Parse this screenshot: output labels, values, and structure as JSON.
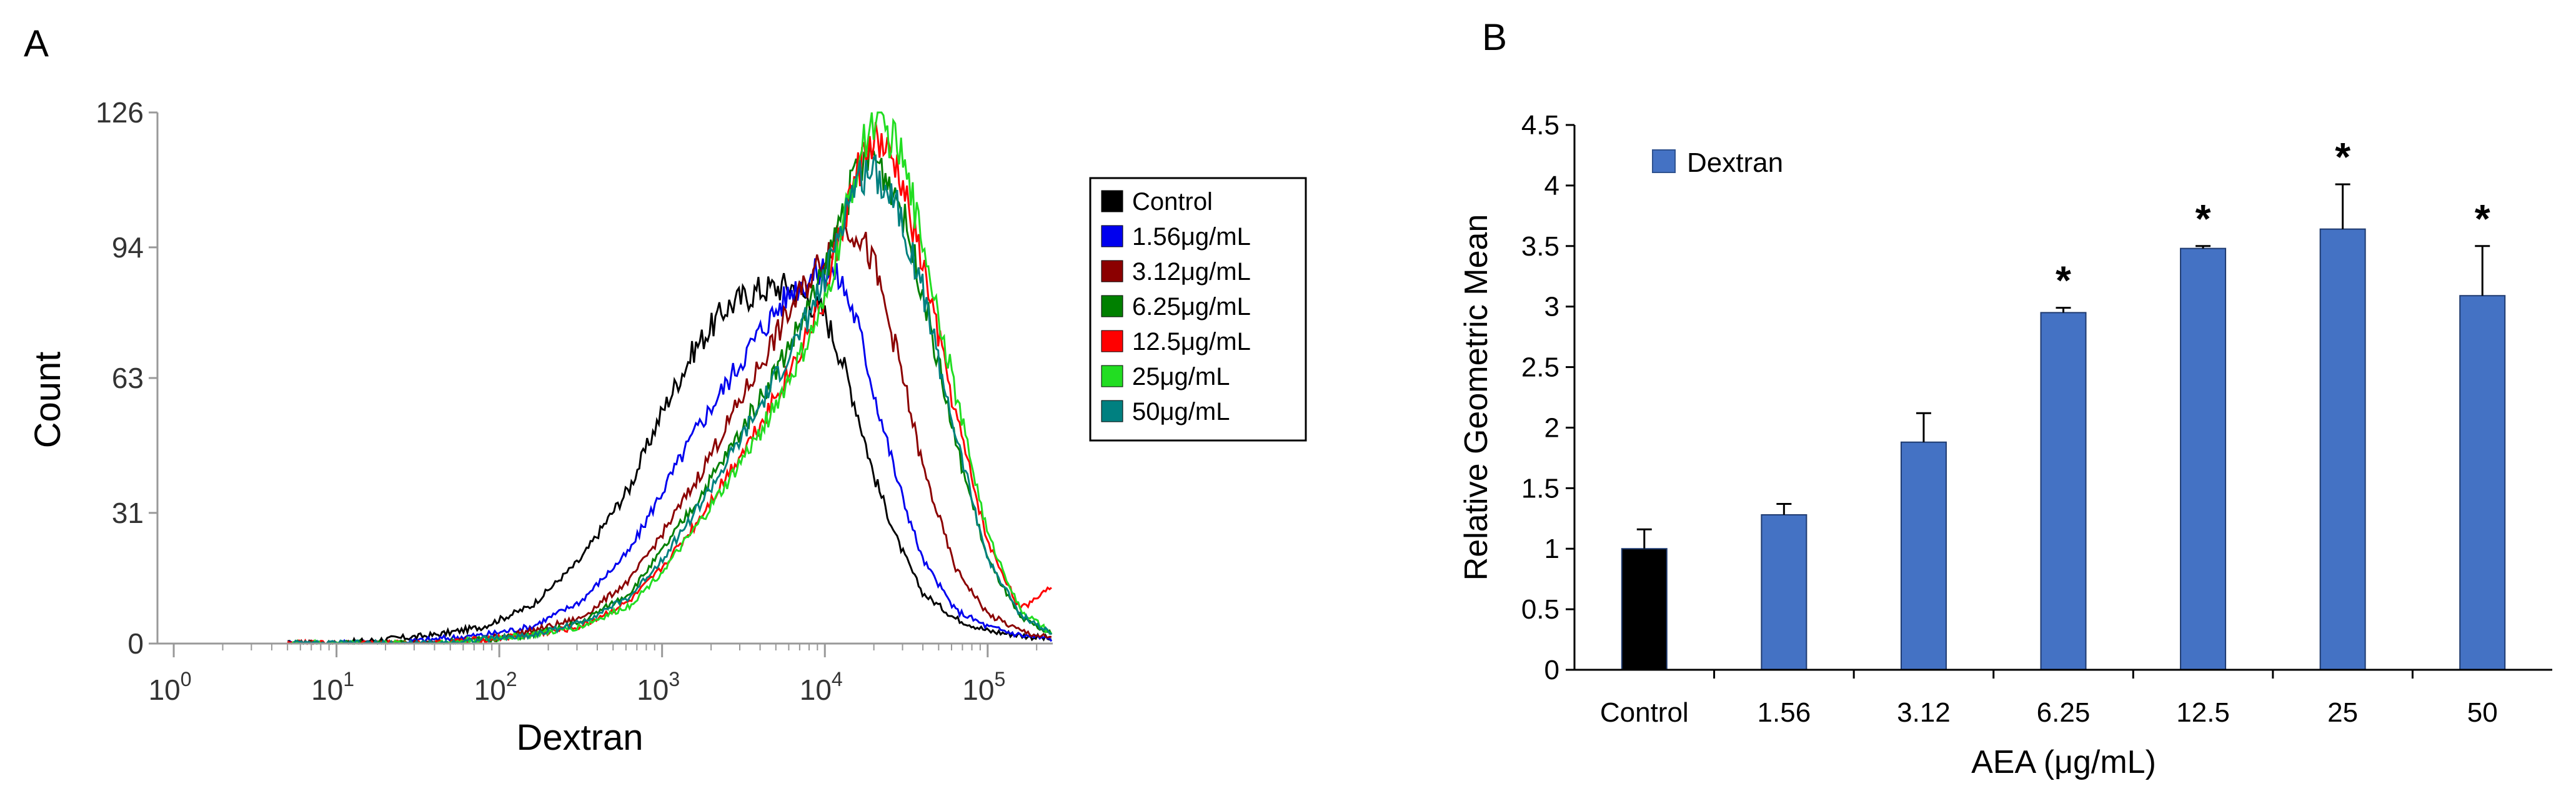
{
  "panels": {
    "a_label": "A",
    "b_label": "B"
  },
  "colors": {
    "control": "#000000",
    "c156": "#0000ee",
    "c312": "#8b0000",
    "c625": "#008000",
    "c125": "#ff0000",
    "c25": "#22dd22",
    "c50": "#008080",
    "bar_blue": "#4472c4",
    "bar_black": "#000000"
  },
  "chart_data": [
    {
      "type": "line",
      "panel": "A",
      "title": "",
      "xlabel": "Dextran",
      "ylabel": "Count",
      "x_scale": "log",
      "xlim_log10": [
        -0.1,
        5.4
      ],
      "ylim": [
        0,
        126
      ],
      "y_ticks": [
        "0",
        "31",
        "63",
        "94",
        "126"
      ],
      "x_ticks": [
        {
          "base": "10",
          "exp": "0",
          "log10": 0
        },
        {
          "base": "10",
          "exp": "1",
          "log10": 1
        },
        {
          "base": "10",
          "exp": "2",
          "log10": 2
        },
        {
          "base": "10",
          "exp": "3",
          "log10": 3
        },
        {
          "base": "10",
          "exp": "4",
          "log10": 4
        },
        {
          "base": "10",
          "exp": "5",
          "log10": 5
        }
      ],
      "legend_position": "right",
      "series": [
        {
          "name": "Control",
          "color_key": "control",
          "log_x": [
            0.7,
            1.0,
            1.3,
            1.6,
            1.9,
            2.2,
            2.5,
            2.8,
            3.0,
            3.2,
            3.4,
            3.6,
            3.8,
            4.0,
            4.1,
            4.2,
            4.3,
            4.45,
            4.6,
            4.8,
            5.0,
            5.2,
            5.4
          ],
          "values": [
            0,
            0,
            1,
            2,
            4,
            9,
            20,
            37,
            55,
            70,
            80,
            84,
            85,
            78,
            68,
            55,
            40,
            24,
            12,
            6,
            3,
            2,
            1
          ]
        },
        {
          "name": "1.56μg/mL",
          "color_key": "c156",
          "log_x": [
            0.7,
            1.0,
            1.3,
            1.6,
            1.9,
            2.2,
            2.5,
            2.8,
            3.0,
            3.2,
            3.4,
            3.6,
            3.8,
            4.0,
            4.1,
            4.2,
            4.3,
            4.45,
            4.6,
            4.8,
            5.0,
            5.2,
            5.4
          ],
          "values": [
            0,
            0,
            0,
            1,
            2,
            4,
            10,
            22,
            36,
            50,
            62,
            74,
            84,
            89,
            86,
            76,
            60,
            38,
            20,
            8,
            4,
            2,
            1
          ]
        },
        {
          "name": "3.12μg/mL",
          "color_key": "c312",
          "log_x": [
            0.7,
            1.0,
            1.3,
            1.6,
            1.9,
            2.2,
            2.5,
            2.8,
            3.0,
            3.2,
            3.4,
            3.6,
            3.8,
            4.0,
            4.1,
            4.2,
            4.3,
            4.45,
            4.6,
            4.8,
            5.0,
            5.2,
            5.4
          ],
          "values": [
            0,
            0,
            0,
            0,
            1,
            3,
            6,
            15,
            26,
            38,
            52,
            66,
            80,
            92,
            99,
            98,
            90,
            68,
            42,
            18,
            7,
            3,
            1
          ]
        },
        {
          "name": "6.25μg/mL",
          "color_key": "c625",
          "log_x": [
            0.7,
            1.0,
            1.3,
            1.6,
            1.9,
            2.2,
            2.5,
            2.8,
            3.0,
            3.2,
            3.4,
            3.6,
            3.8,
            4.0,
            4.1,
            4.2,
            4.3,
            4.45,
            4.6,
            4.8,
            5.0,
            5.2,
            5.4
          ],
          "values": [
            0,
            0,
            0,
            0,
            1,
            2,
            5,
            12,
            22,
            33,
            45,
            58,
            72,
            88,
            102,
            112,
            116,
            106,
            84,
            48,
            20,
            6,
            2
          ]
        },
        {
          "name": "12.5μg/mL",
          "color_key": "c125",
          "log_x": [
            0.7,
            1.0,
            1.3,
            1.6,
            1.9,
            2.2,
            2.5,
            2.8,
            3.0,
            3.2,
            3.4,
            3.6,
            3.8,
            4.0,
            4.1,
            4.2,
            4.3,
            4.45,
            4.6,
            4.8,
            5.0,
            5.2,
            5.4
          ],
          "values": [
            0,
            0,
            0,
            0,
            1,
            2,
            4,
            10,
            18,
            28,
            40,
            52,
            66,
            82,
            98,
            112,
            120,
            112,
            90,
            55,
            24,
            8,
            14
          ]
        },
        {
          "name": "25μg/mL",
          "color_key": "c25",
          "log_x": [
            0.7,
            1.0,
            1.3,
            1.6,
            1.9,
            2.2,
            2.5,
            2.8,
            3.0,
            3.2,
            3.4,
            3.6,
            3.8,
            4.0,
            4.1,
            4.2,
            4.3,
            4.45,
            4.6,
            4.8,
            5.0,
            5.2,
            5.4
          ],
          "values": [
            0,
            0,
            0,
            0,
            1,
            2,
            4,
            9,
            17,
            27,
            38,
            50,
            64,
            80,
            97,
            114,
            125,
            118,
            96,
            60,
            26,
            8,
            2
          ]
        },
        {
          "name": "50μg/mL",
          "color_key": "c50",
          "log_x": [
            0.7,
            1.0,
            1.3,
            1.6,
            1.9,
            2.2,
            2.5,
            2.8,
            3.0,
            3.2,
            3.4,
            3.6,
            3.8,
            4.0,
            4.1,
            4.2,
            4.3,
            4.45,
            4.6,
            4.8,
            5.0,
            5.2,
            5.4
          ],
          "values": [
            0,
            0,
            0,
            0,
            1,
            2,
            5,
            11,
            20,
            31,
            43,
            56,
            70,
            86,
            100,
            110,
            113,
            104,
            84,
            50,
            20,
            7,
            2
          ]
        }
      ]
    },
    {
      "type": "bar",
      "panel": "B",
      "title": "",
      "xlabel": "AEA (μg/mL)",
      "ylabel": "Relative Geometric Mean",
      "ylim": [
        0,
        4.5
      ],
      "y_ticks": [
        "0",
        "0.5",
        "1",
        "1.5",
        "2",
        "2.5",
        "3",
        "3.5",
        "4",
        "4.5"
      ],
      "categories": [
        "Control",
        "1.56",
        "3.12",
        "6.25",
        "12.5",
        "25",
        "50"
      ],
      "series": [
        {
          "name": "Dextran",
          "values": [
            1.0,
            1.28,
            1.88,
            2.95,
            3.48,
            3.64,
            3.09
          ],
          "errors": [
            0.16,
            0.09,
            0.24,
            0.04,
            0.02,
            0.37,
            0.41
          ]
        }
      ],
      "bar_colors": [
        "bar_black",
        "bar_blue",
        "bar_blue",
        "bar_blue",
        "bar_blue",
        "bar_blue",
        "bar_blue"
      ],
      "significance": [
        "",
        "",
        "",
        "*",
        "*",
        "*",
        "*"
      ],
      "legend_position": "top-left",
      "grid": false
    }
  ]
}
